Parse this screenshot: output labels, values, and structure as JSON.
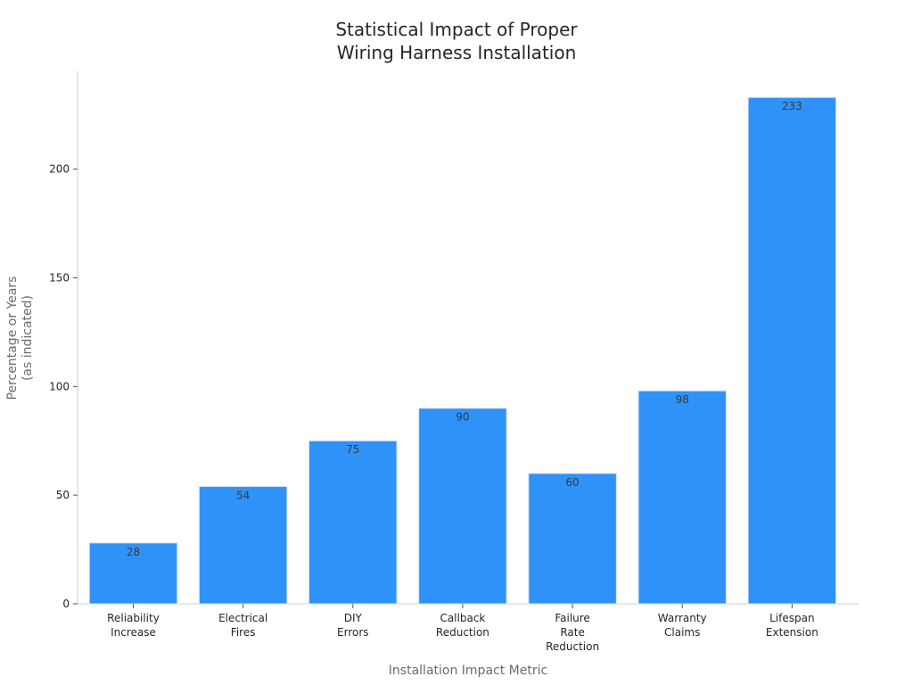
{
  "chart_data": {
    "type": "bar",
    "title_lines": [
      "Statistical Impact of Proper",
      "Wiring Harness Installation"
    ],
    "xlabel": "Installation Impact Metric",
    "ylabel_lines": [
      "Percentage or Years",
      "(as indicated)"
    ],
    "categories": [
      [
        "Reliability",
        "Increase"
      ],
      [
        "Electrical",
        "Fires"
      ],
      [
        "DIY",
        "Errors"
      ],
      [
        "Callback",
        "Reduction"
      ],
      [
        "Failure",
        "Rate",
        "Reduction"
      ],
      [
        "Warranty",
        "Claims"
      ],
      [
        "Lifespan",
        "Extension"
      ]
    ],
    "values": [
      28,
      54,
      75,
      90,
      60,
      98,
      233
    ],
    "ylim": [
      0,
      245
    ],
    "yticks": [
      0,
      50,
      100,
      150,
      200
    ],
    "bar_color": "#2f92f8",
    "grid": false
  }
}
